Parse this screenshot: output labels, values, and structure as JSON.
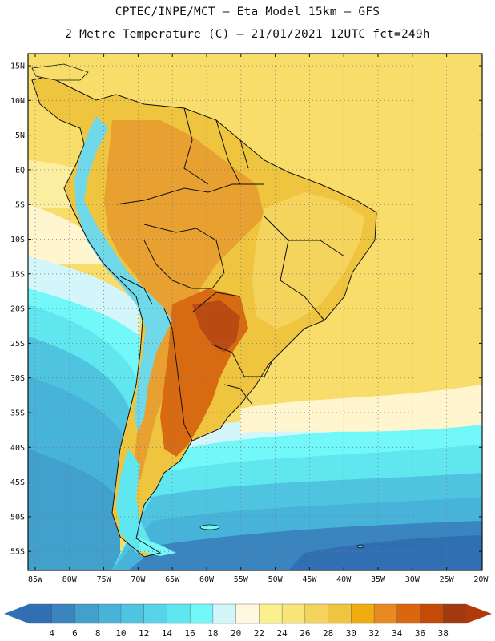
{
  "title_line1": "CPTEC/INPE/MCT –  Eta Model 15km – GFS",
  "title_line2": "2 Metre Temperature (C) – 21/01/2021 12UTC fct=249h",
  "lat_labels": [
    "15N",
    "10N",
    "5N",
    "EQ",
    "5S",
    "10S",
    "15S",
    "20S",
    "25S",
    "30S",
    "35S",
    "40S",
    "45S",
    "50S",
    "55S"
  ],
  "lon_labels": [
    "85W",
    "80W",
    "75W",
    "70W",
    "65W",
    "60W",
    "55W",
    "50W",
    "45W",
    "40W",
    "35W",
    "30W",
    "25W",
    "20W"
  ],
  "colorbar": {
    "values": [
      "4",
      "6",
      "8",
      "10",
      "12",
      "14",
      "16",
      "18",
      "20",
      "22",
      "24",
      "26",
      "28",
      "30",
      "32",
      "34",
      "36",
      "38"
    ],
    "colors": [
      "#2f6fb2",
      "#3a84c0",
      "#41a0cc",
      "#48b3d8",
      "#4ec4e0",
      "#57d4ea",
      "#5fe6ef",
      "#72f8f8",
      "#d2f6fa",
      "#fff7df",
      "#fbf08e",
      "#f9e57a",
      "#f4d45c",
      "#efc43e",
      "#f0ad12",
      "#e88a1f",
      "#dc6510",
      "#c44b06",
      "#a23a10"
    ],
    "low_end_color": "#2f6fb2",
    "high_end_color": "#b03a0c"
  },
  "colors": {
    "ocean_warm": "#f8dd6a",
    "ocean_mid": "#fbf0a0",
    "ocean_cool": "#5fe6ef",
    "ocean_cold": "#2f6fb2",
    "land_hot": "#e8a030",
    "andes": "#6fd9ea"
  }
}
